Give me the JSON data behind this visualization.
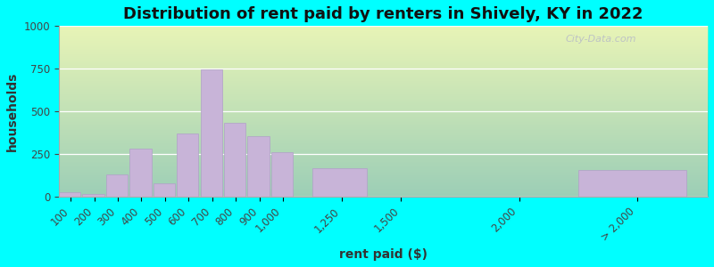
{
  "title": "Distribution of rent paid by renters in Shively, KY in 2022",
  "xlabel": "rent paid ($)",
  "ylabel": "households",
  "bar_centers": [
    100,
    200,
    300,
    400,
    500,
    600,
    700,
    800,
    900,
    1000,
    1250,
    1500,
    2000,
    2500
  ],
  "bar_widths": [
    100,
    100,
    100,
    100,
    100,
    100,
    100,
    100,
    100,
    100,
    250,
    250,
    250,
    500
  ],
  "bar_heights": [
    30,
    15,
    130,
    285,
    80,
    370,
    745,
    435,
    355,
    260,
    170,
    0,
    0,
    160
  ],
  "tick_positions": [
    100,
    200,
    300,
    400,
    500,
    600,
    700,
    800,
    900,
    1000,
    1250,
    1500,
    2000,
    2500
  ],
  "tick_labels": [
    "100",
    "200",
    "300",
    "400",
    "500",
    "600",
    "700",
    "800",
    "900",
    "1,000",
    "1,250",
    "1,500",
    "2,000",
    "> 2,000"
  ],
  "bar_color": "#c8b4d8",
  "bar_edge_color": "#b0a0c8",
  "ylim": [
    0,
    1000
  ],
  "yticks": [
    0,
    250,
    500,
    750,
    1000
  ],
  "xlim": [
    50,
    2800
  ],
  "title_fontsize": 13,
  "label_fontsize": 10,
  "tick_fontsize": 8.5,
  "outer_bg": "#00ffff",
  "axes_bg_top": "#e8f5e0",
  "axes_bg_bottom": "#f5f5e8",
  "watermark": "City-Data.com"
}
